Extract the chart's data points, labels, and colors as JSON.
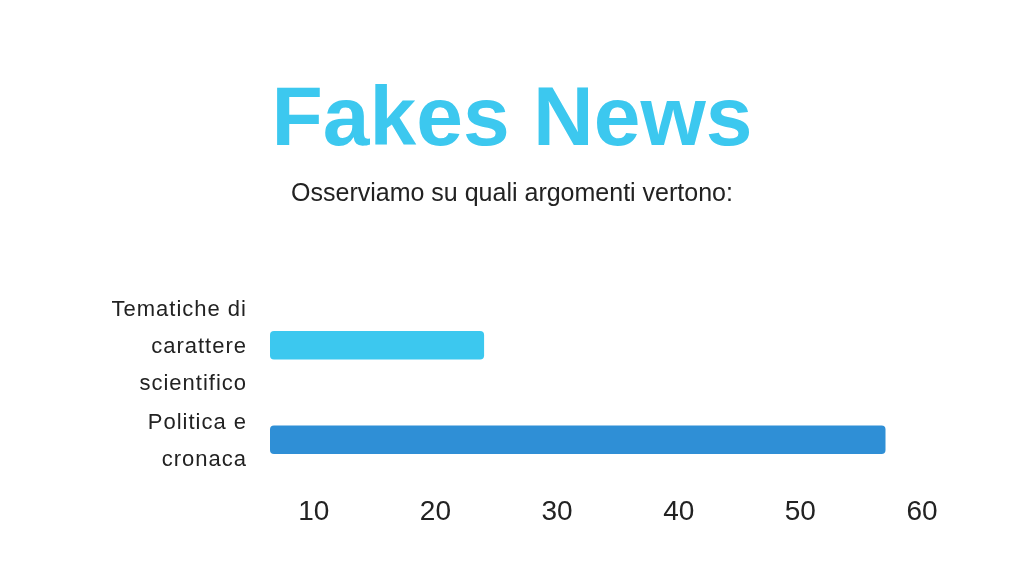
{
  "chart_data": {
    "type": "bar",
    "orientation": "horizontal",
    "title": "Fakes News",
    "subtitle": "Osserviamo su quali argomenti vertono:",
    "categories": [
      "Tematiche di carattere scientifico",
      "Politica e cronaca"
    ],
    "values": [
      24,
      57
    ],
    "colors": [
      "#3cc8ef",
      "#2f8fd6"
    ],
    "xlim": [
      6.4,
      60
    ],
    "xticks": [
      10,
      20,
      30,
      40,
      50,
      60
    ],
    "grid": false
  }
}
